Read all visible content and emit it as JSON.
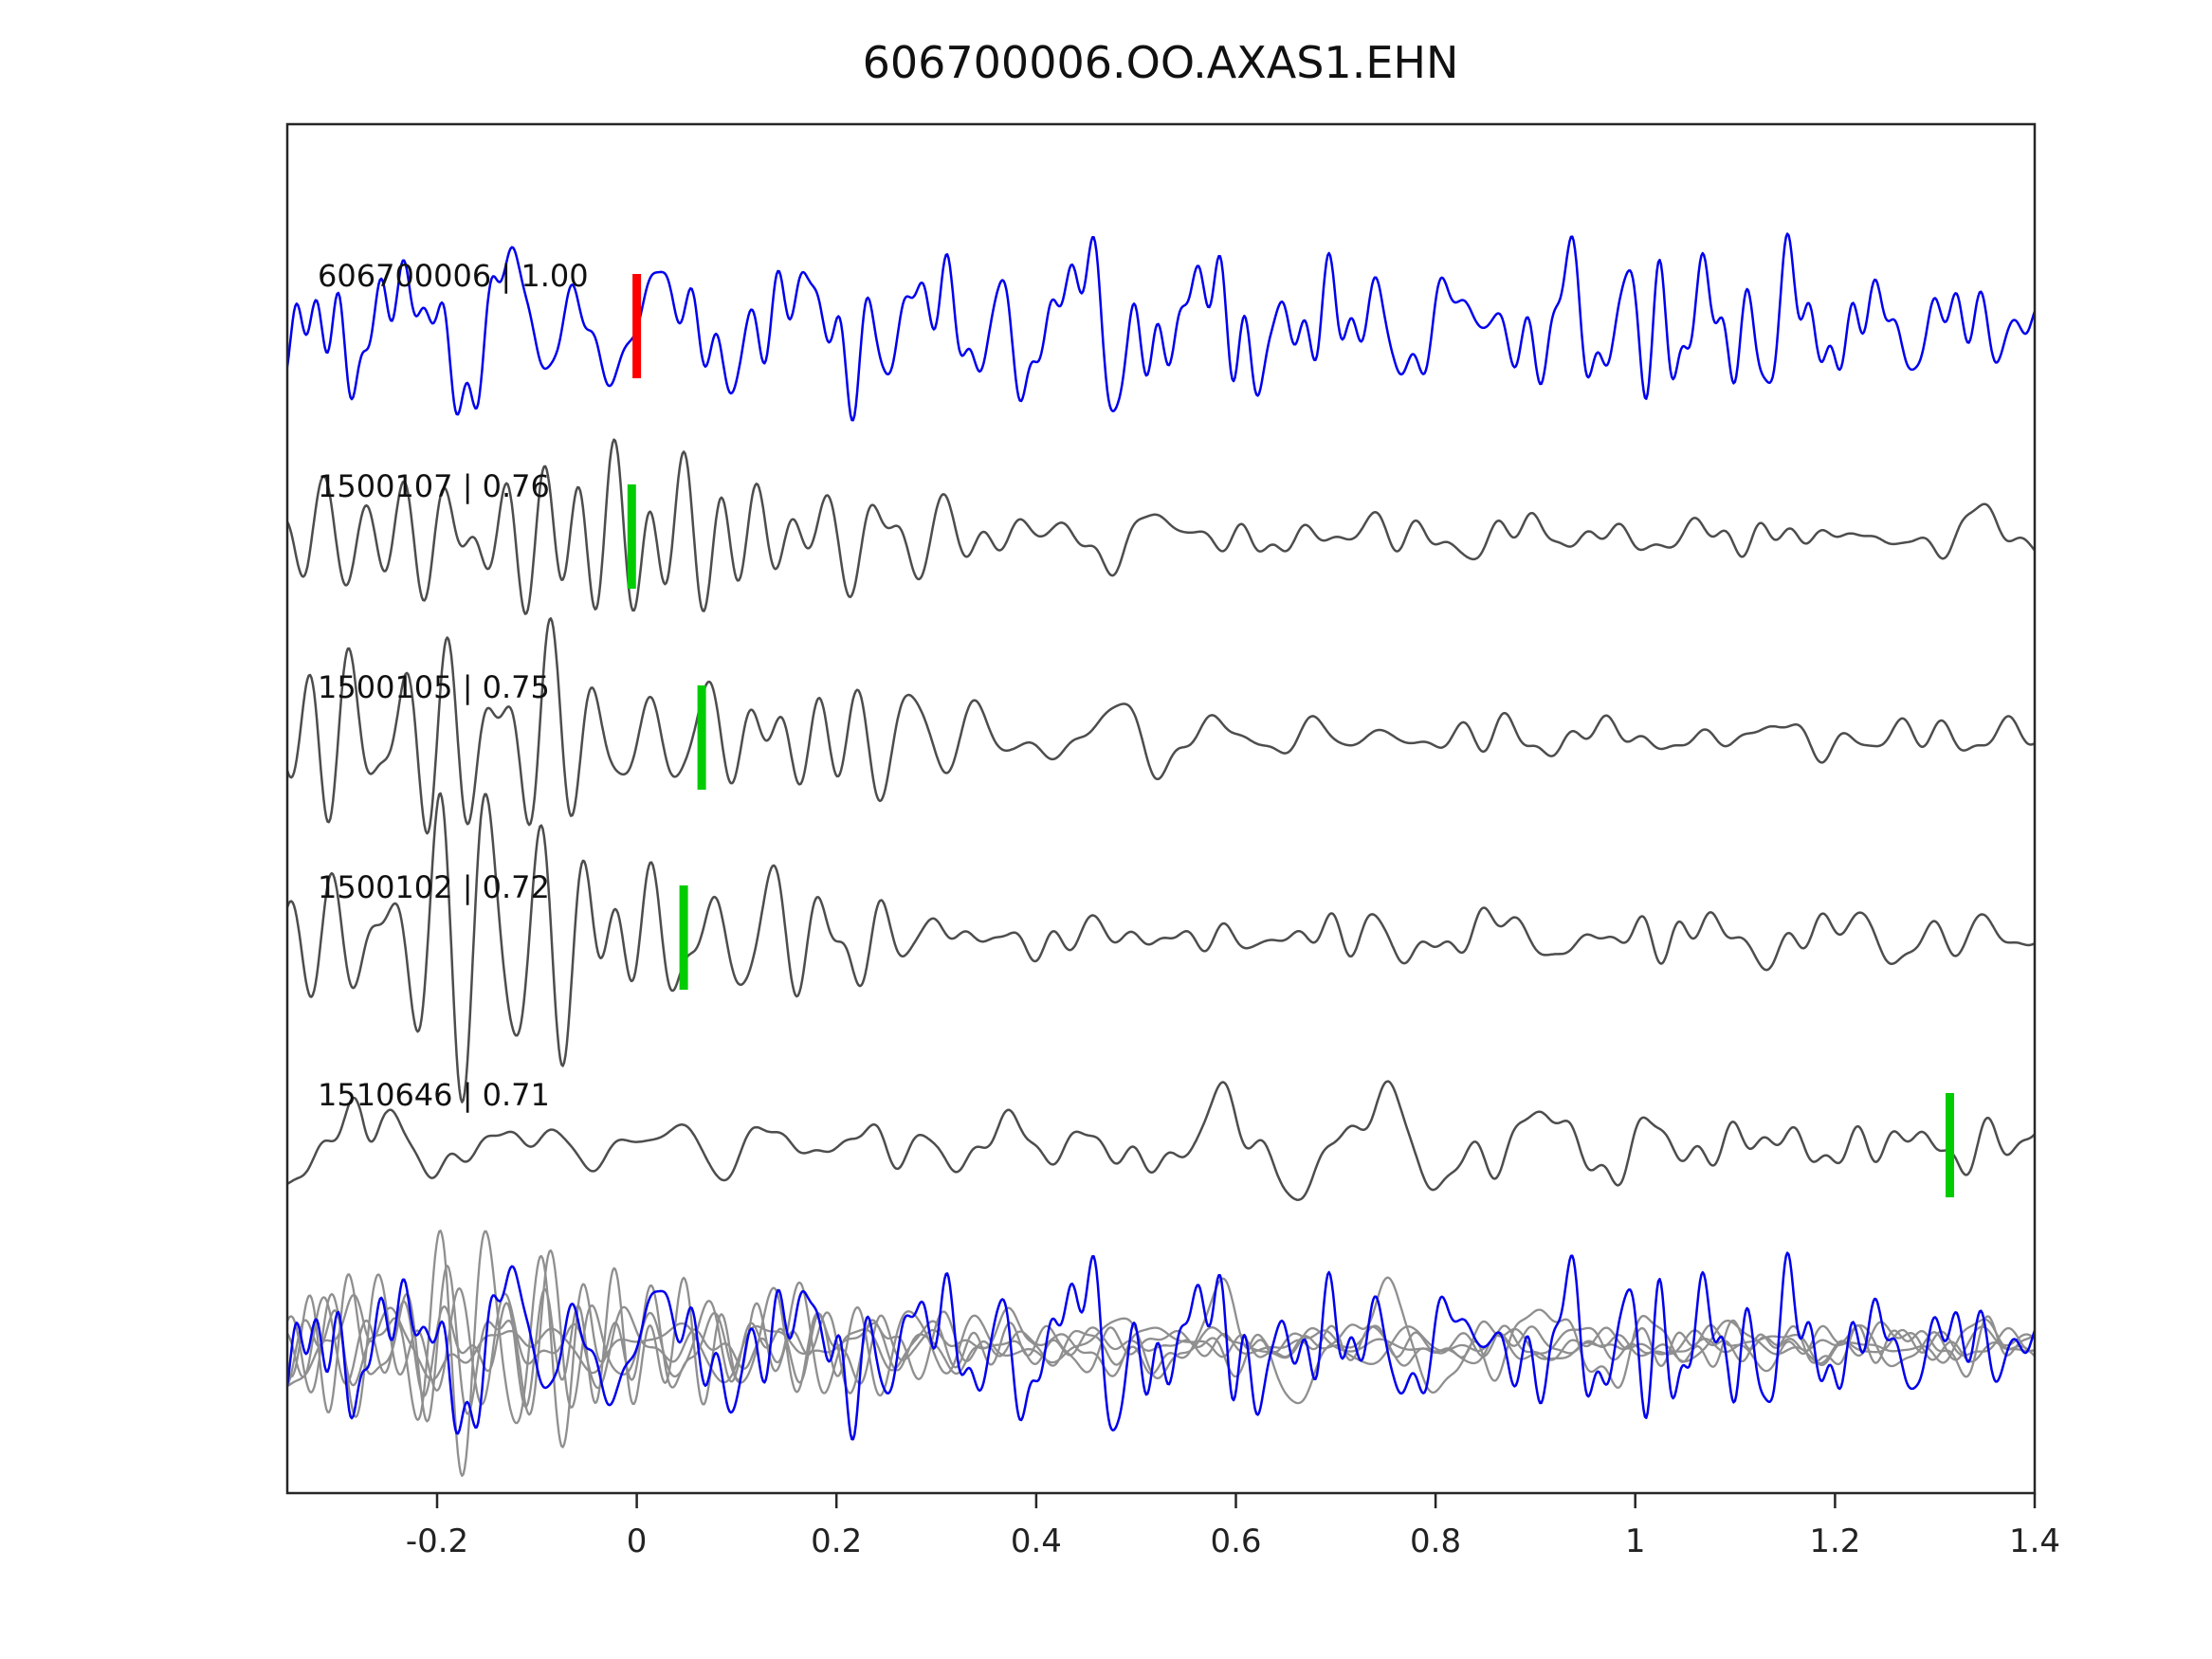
{
  "title": "606700006.OO.AXAS1.EHN",
  "chart_data": {
    "type": "line",
    "title": "606700006.OO.AXAS1.EHN",
    "subtitle": "",
    "xlabel": "",
    "ylabel": "",
    "xlim": [
      -0.35,
      1.4
    ],
    "grid": false,
    "legend": "none",
    "x_tick_values": [
      -0.2,
      0,
      0.2,
      0.4,
      0.6,
      0.8,
      1,
      1.2,
      1.4
    ],
    "x_tick_labels": [
      "-0.2",
      "0",
      "0.2",
      "0.4",
      "0.6",
      "0.8",
      "1",
      "1.2",
      "1.4"
    ],
    "colors": {
      "template_trace": "#0000ee",
      "detection_trace": "#4d4d4d",
      "overlay_gray": "#8f8f8f",
      "template_pick": "#ff0000",
      "detection_pick": "#00cc00",
      "frame": "#262626",
      "text": "#111111"
    },
    "traces": [
      {
        "id": "606700006",
        "label": "606700006 | 1.00",
        "correlation": 1.0,
        "color": "#0000ee",
        "pick": {
          "time": 0.0,
          "color": "#ff0000"
        },
        "components": [
          {
            "seed": 11,
            "fmin": 7,
            "fmax": 52,
            "amp": 120,
            "envelope": [
              [
                -0.35,
                0.75
              ],
              [
                0.3,
                0.85
              ],
              [
                0.7,
                0.8
              ],
              [
                1.05,
                0.95
              ],
              [
                1.4,
                0.85
              ]
            ]
          }
        ]
      },
      {
        "id": "1500107",
        "label": "1500107 | 0.76",
        "correlation": 0.76,
        "color": "#4d4d4d",
        "pick": {
          "time": -0.005,
          "color": "#00cc00"
        },
        "components": [
          {
            "seed": 23,
            "fmin": 14,
            "fmax": 30,
            "amp": 170,
            "envelope": [
              [
                -0.35,
                0.5
              ],
              [
                -0.33,
                0.9
              ],
              [
                -0.3,
                1.0
              ],
              [
                -0.12,
                1.0
              ],
              [
                0.0,
                0.8
              ],
              [
                0.1,
                0.55
              ],
              [
                0.2,
                0.3
              ],
              [
                0.35,
                0.15
              ],
              [
                0.6,
                0.08
              ],
              [
                1.4,
                0.06
              ]
            ]
          },
          {
            "seed": 24,
            "fmin": 5,
            "fmax": 35,
            "amp": 170,
            "envelope": [
              [
                -0.35,
                0.08
              ],
              [
                0.0,
                0.16
              ],
              [
                0.3,
                0.25
              ],
              [
                1.4,
                0.21
              ]
            ]
          }
        ]
      },
      {
        "id": "1500105",
        "label": "1500105 | 0.75",
        "correlation": 0.75,
        "color": "#4d4d4d",
        "pick": {
          "time": 0.065,
          "color": "#00cc00"
        },
        "components": [
          {
            "seed": 33,
            "fmin": 14,
            "fmax": 30,
            "amp": 170,
            "envelope": [
              [
                -0.35,
                0.45
              ],
              [
                -0.32,
                0.85
              ],
              [
                -0.29,
                1.0
              ],
              [
                -0.1,
                1.0
              ],
              [
                0.02,
                0.8
              ],
              [
                0.12,
                0.55
              ],
              [
                0.22,
                0.3
              ],
              [
                0.38,
                0.15
              ],
              [
                0.6,
                0.08
              ],
              [
                1.4,
                0.06
              ]
            ]
          },
          {
            "seed": 34,
            "fmin": 5,
            "fmax": 35,
            "amp": 170,
            "envelope": [
              [
                -0.35,
                0.08
              ],
              [
                0.0,
                0.15
              ],
              [
                0.3,
                0.24
              ],
              [
                1.4,
                0.2
              ]
            ]
          }
        ]
      },
      {
        "id": "1500102",
        "label": "1500102 | 0.72",
        "correlation": 0.72,
        "color": "#4d4d4d",
        "pick": {
          "time": 0.047,
          "color": "#00cc00"
        },
        "components": [
          {
            "seed": 43,
            "fmin": 14,
            "fmax": 30,
            "amp": 170,
            "envelope": [
              [
                -0.35,
                0.35
              ],
              [
                -0.31,
                0.7
              ],
              [
                -0.27,
                1.0
              ],
              [
                -0.08,
                1.0
              ],
              [
                0.05,
                0.75
              ],
              [
                0.15,
                0.5
              ],
              [
                0.25,
                0.25
              ],
              [
                0.45,
                0.1
              ],
              [
                1.4,
                0.06
              ]
            ]
          },
          {
            "seed": 44,
            "fmin": 5,
            "fmax": 35,
            "amp": 170,
            "envelope": [
              [
                -0.35,
                0.08
              ],
              [
                0.0,
                0.15
              ],
              [
                0.3,
                0.25
              ],
              [
                1.4,
                0.21
              ]
            ]
          }
        ]
      },
      {
        "id": "1510646",
        "label": "1510646 | 0.71",
        "correlation": 0.71,
        "color": "#4d4d4d",
        "pick": {
          "time": 1.315,
          "color": "#00cc00"
        },
        "components": [
          {
            "seed": 53,
            "fmin": 5,
            "fmax": 34,
            "amp": 85,
            "envelope": [
              [
                -0.35,
                0.6
              ],
              [
                -0.3,
                1.0
              ],
              [
                -0.275,
                1.3
              ],
              [
                -0.25,
                0.85
              ],
              [
                -0.15,
                0.7
              ],
              [
                0.2,
                0.75
              ],
              [
                0.8,
                0.8
              ],
              [
                1.4,
                0.7
              ]
            ]
          }
        ]
      }
    ],
    "overlay": {
      "gray_color": "#8f8f8f",
      "gray_traces": [
        {
          "components": [
            {
              "seed": 23,
              "fmin": 14,
              "fmax": 30,
              "amp": 135,
              "envelope": [
                [
                  -0.35,
                  0.5
                ],
                [
                  -0.33,
                  0.9
                ],
                [
                  -0.3,
                  1.0
                ],
                [
                  -0.12,
                  1.0
                ],
                [
                  0.0,
                  0.8
                ],
                [
                  0.1,
                  0.55
                ],
                [
                  0.2,
                  0.3
                ],
                [
                  0.35,
                  0.15
                ],
                [
                  0.6,
                  0.08
                ],
                [
                  1.4,
                  0.06
                ]
              ]
            },
            {
              "seed": 24,
              "fmin": 5,
              "fmax": 35,
              "amp": 135,
              "envelope": [
                [
                  -0.35,
                  0.08
                ],
                [
                  0.0,
                  0.16
                ],
                [
                  0.3,
                  0.25
                ],
                [
                  1.4,
                  0.21
                ]
              ]
            }
          ]
        },
        {
          "components": [
            {
              "seed": 33,
              "fmin": 14,
              "fmax": 30,
              "amp": 135,
              "envelope": [
                [
                  -0.35,
                  0.45
                ],
                [
                  -0.32,
                  0.85
                ],
                [
                  -0.29,
                  1.0
                ],
                [
                  -0.1,
                  1.0
                ],
                [
                  0.02,
                  0.8
                ],
                [
                  0.12,
                  0.55
                ],
                [
                  0.22,
                  0.3
                ],
                [
                  0.38,
                  0.15
                ],
                [
                  0.6,
                  0.08
                ],
                [
                  1.4,
                  0.06
                ]
              ]
            },
            {
              "seed": 34,
              "fmin": 5,
              "fmax": 35,
              "amp": 135,
              "envelope": [
                [
                  -0.35,
                  0.08
                ],
                [
                  0.0,
                  0.15
                ],
                [
                  0.3,
                  0.24
                ],
                [
                  1.4,
                  0.2
                ]
              ]
            }
          ]
        },
        {
          "components": [
            {
              "seed": 43,
              "fmin": 14,
              "fmax": 30,
              "amp": 135,
              "envelope": [
                [
                  -0.35,
                  0.35
                ],
                [
                  -0.31,
                  0.7
                ],
                [
                  -0.27,
                  1.0
                ],
                [
                  -0.08,
                  1.0
                ],
                [
                  0.05,
                  0.75
                ],
                [
                  0.15,
                  0.5
                ],
                [
                  0.25,
                  0.25
                ],
                [
                  0.45,
                  0.1
                ],
                [
                  1.4,
                  0.06
                ]
              ]
            },
            {
              "seed": 44,
              "fmin": 5,
              "fmax": 35,
              "amp": 135,
              "envelope": [
                [
                  -0.35,
                  0.08
                ],
                [
                  0.0,
                  0.15
                ],
                [
                  0.3,
                  0.25
                ],
                [
                  1.4,
                  0.21
                ]
              ]
            }
          ]
        },
        {
          "components": [
            {
              "seed": 63,
              "fmin": 12,
              "fmax": 30,
              "amp": 135,
              "envelope": [
                [
                  -0.35,
                  0.4
                ],
                [
                  -0.32,
                  0.8
                ],
                [
                  -0.28,
                  1.0
                ],
                [
                  -0.1,
                  1.0
                ],
                [
                  0.05,
                  0.7
                ],
                [
                  0.18,
                  0.4
                ],
                [
                  0.3,
                  0.2
                ],
                [
                  0.6,
                  0.1
                ],
                [
                  1.4,
                  0.08
                ]
              ]
            },
            {
              "seed": 64,
              "fmin": 5,
              "fmax": 35,
              "amp": 135,
              "envelope": [
                [
                  -0.35,
                  0.08
                ],
                [
                  0.0,
                  0.15
                ],
                [
                  0.3,
                  0.23
                ],
                [
                  1.4,
                  0.2
                ]
              ]
            }
          ]
        },
        {
          "components": [
            {
              "seed": 53,
              "fmin": 5,
              "fmax": 34,
              "amp": 90,
              "envelope": [
                [
                  -0.35,
                  0.6
                ],
                [
                  -0.3,
                  1.0
                ],
                [
                  -0.275,
                  1.3
                ],
                [
                  -0.25,
                  0.85
                ],
                [
                  -0.15,
                  0.7
                ],
                [
                  0.2,
                  0.75
                ],
                [
                  0.8,
                  0.8
                ],
                [
                  1.4,
                  0.7
                ]
              ]
            }
          ]
        }
      ],
      "blue_trace": {
        "color": "#0000ee",
        "components": [
          {
            "seed": 11,
            "fmin": 7,
            "fmax": 52,
            "amp": 120,
            "envelope": [
              [
                -0.35,
                0.75
              ],
              [
                0.3,
                0.85
              ],
              [
                0.7,
                0.8
              ],
              [
                1.05,
                0.95
              ],
              [
                1.4,
                0.85
              ]
            ]
          }
        ]
      }
    }
  }
}
